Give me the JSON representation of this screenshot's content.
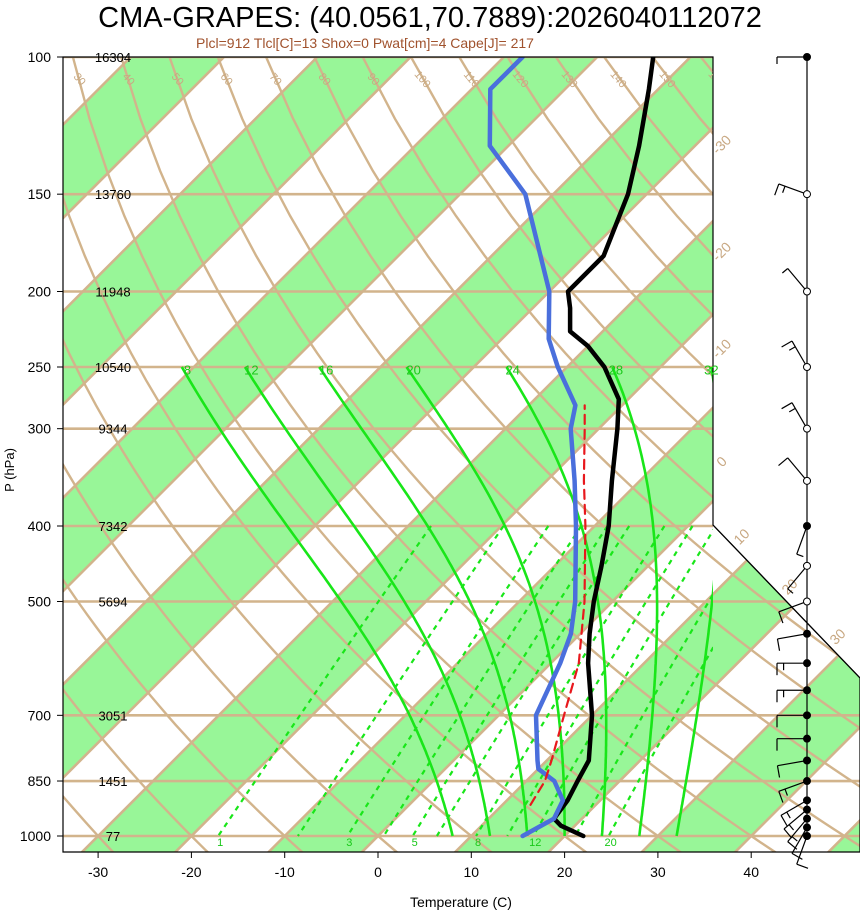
{
  "title": "CMA-GRAPES: (40.0561,70.7889):2026040112072",
  "subtitle": "Plcl=912 Tlcl[C]=13 Shox=0 Pwat[cm]=4 Cape[J]= 217",
  "ylabel": "P (hPa)",
  "xlabel": "Temperature (C)",
  "colors": {
    "temperature": "#000000",
    "dewpoint": "#4a6fdc",
    "parcel": "#e8181d",
    "band": "#98f698",
    "isotherm": "#d2b48c",
    "mixing_ratio": "#19e619",
    "moist_adiabat": "#19e619",
    "subtitle": "#a0522d"
  },
  "chart_data": {
    "type": "line",
    "title": "CMA-GRAPES: (40.0561,70.7889):2026040112072",
    "subtitle": "Plcl=912 Tlcl[C]=13 Shox=0 Pwat[cm]=4 Cape[J]= 217",
    "xlabel": "Temperature (C)",
    "ylabel": "P (hPa)",
    "xlim": [
      -33,
      52
    ],
    "ylim": [
      1020,
      100
    ],
    "y_scale": "log",
    "grid": true,
    "x_ticks": [
      "-30",
      "-20",
      "-10",
      "0",
      "10",
      "20",
      "30",
      "40"
    ],
    "x_tick_values": [
      -30,
      -20,
      -10,
      0,
      10,
      20,
      30,
      40
    ],
    "pressure_levels": [
      {
        "p": 100,
        "label": "100",
        "height": "16304"
      },
      {
        "p": 150,
        "label": "150",
        "height": "13760"
      },
      {
        "p": 200,
        "label": "200",
        "height": "11948"
      },
      {
        "p": 250,
        "label": "250",
        "height": "10540"
      },
      {
        "p": 300,
        "label": "300",
        "height": "9344"
      },
      {
        "p": 400,
        "label": "400",
        "height": "7342"
      },
      {
        "p": 500,
        "label": "500",
        "height": "5694"
      },
      {
        "p": 700,
        "label": "700",
        "height": "3051"
      },
      {
        "p": 850,
        "label": "850",
        "height": "1451"
      },
      {
        "p": 1000,
        "label": "1000",
        "height": "77"
      }
    ],
    "series": [
      {
        "key": "temperature",
        "points": [
          [
            1000,
            22
          ],
          [
            970,
            18.5
          ],
          [
            950,
            17
          ],
          [
            900,
            16.5
          ],
          [
            850,
            15.5
          ],
          [
            800,
            14.5
          ],
          [
            700,
            10
          ],
          [
            600,
            4
          ],
          [
            550,
            1
          ],
          [
            500,
            -2
          ],
          [
            450,
            -5
          ],
          [
            400,
            -8.5
          ],
          [
            350,
            -13
          ],
          [
            300,
            -18
          ],
          [
            275,
            -21
          ],
          [
            250,
            -26
          ],
          [
            235,
            -30
          ],
          [
            225,
            -33.5
          ],
          [
            210,
            -36
          ],
          [
            200,
            -38
          ],
          [
            180,
            -38
          ],
          [
            150,
            -42
          ],
          [
            130,
            -46
          ],
          [
            110,
            -51
          ],
          [
            100,
            -54
          ]
        ]
      },
      {
        "key": "dewpoint",
        "points": [
          [
            1000,
            15.5
          ],
          [
            950,
            17
          ],
          [
            900,
            16
          ],
          [
            850,
            13
          ],
          [
            820,
            10
          ],
          [
            800,
            9
          ],
          [
            700,
            4
          ],
          [
            600,
            1
          ],
          [
            550,
            -1
          ],
          [
            500,
            -4
          ],
          [
            400,
            -12
          ],
          [
            350,
            -17
          ],
          [
            300,
            -23
          ],
          [
            280,
            -25
          ],
          [
            250,
            -31
          ],
          [
            230,
            -35
          ],
          [
            200,
            -40
          ],
          [
            150,
            -53
          ],
          [
            130,
            -62
          ],
          [
            110,
            -68
          ],
          [
            100,
            -68
          ]
        ]
      },
      {
        "key": "parcel",
        "points": [
          [
            912,
            13
          ],
          [
            850,
            12
          ],
          [
            800,
            10.5
          ],
          [
            700,
            7
          ],
          [
            600,
            3
          ],
          [
            500,
            -3
          ],
          [
            400,
            -11
          ],
          [
            350,
            -16
          ],
          [
            300,
            -21.5
          ],
          [
            280,
            -24
          ]
        ]
      }
    ],
    "isotherm_labels": [
      "-30",
      "-20",
      "-10",
      "0",
      "10",
      "20",
      "30",
      "40"
    ],
    "dry_adiabat_labels": [
      "20",
      "30",
      "40",
      "50",
      "60",
      "70",
      "80",
      "90",
      "100",
      "110",
      "120",
      "130",
      "140",
      "150",
      "160"
    ],
    "moist_adiabat_labels": [
      "8",
      "12",
      "16",
      "20",
      "24",
      "28",
      "32"
    ],
    "mixing_ratio_labels": [
      "1",
      "3",
      "5",
      "8",
      "12",
      "20"
    ],
    "wind_barbs": [
      {
        "p": 1000,
        "dir": 200,
        "speed": 10
      },
      {
        "p": 975,
        "dir": 210,
        "speed": 10
      },
      {
        "p": 950,
        "dir": 220,
        "speed": 15
      },
      {
        "p": 925,
        "dir": 230,
        "speed": 15
      },
      {
        "p": 900,
        "dir": 240,
        "speed": 15
      },
      {
        "p": 850,
        "dir": 250,
        "speed": 15
      },
      {
        "p": 800,
        "dir": 260,
        "speed": 10
      },
      {
        "p": 750,
        "dir": 270,
        "speed": 10
      },
      {
        "p": 700,
        "dir": 270,
        "speed": 10
      },
      {
        "p": 650,
        "dir": 270,
        "speed": 15
      },
      {
        "p": 600,
        "dir": 270,
        "speed": 15
      },
      {
        "p": 550,
        "dir": 260,
        "speed": 10
      },
      {
        "p": 500,
        "dir": 250,
        "speed": 10
      },
      {
        "p": 450,
        "dir": 220,
        "speed": 5
      },
      {
        "p": 400,
        "dir": 200,
        "speed": 5
      },
      {
        "p": 350,
        "dir": 320,
        "speed": 10
      },
      {
        "p": 300,
        "dir": 330,
        "speed": 15
      },
      {
        "p": 250,
        "dir": 330,
        "speed": 15
      },
      {
        "p": 200,
        "dir": 320,
        "speed": 5
      },
      {
        "p": 150,
        "dir": 290,
        "speed": 15
      },
      {
        "p": 100,
        "dir": 270,
        "speed": 5
      }
    ]
  }
}
